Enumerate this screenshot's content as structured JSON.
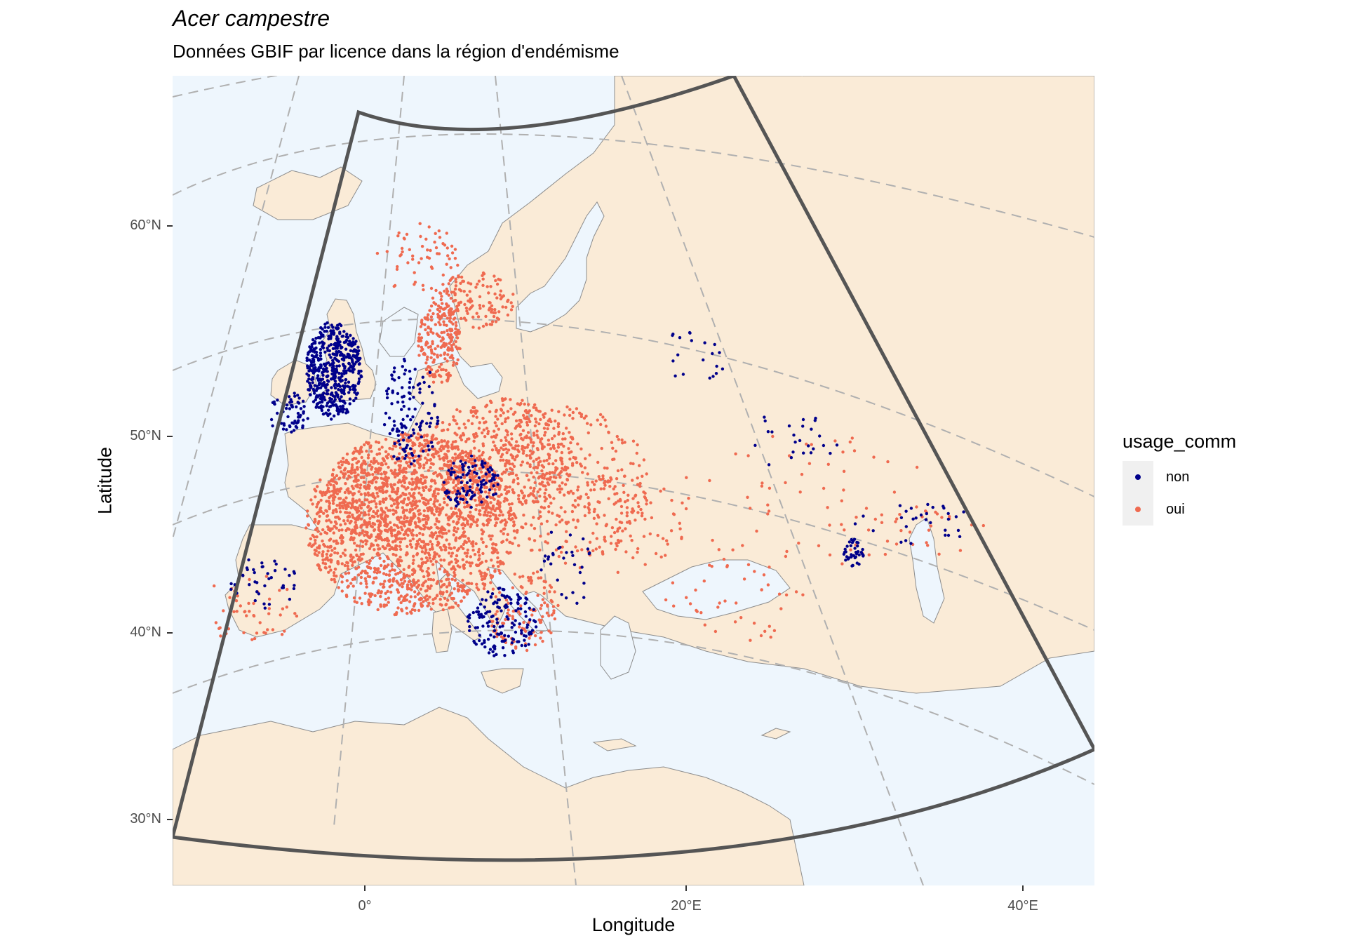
{
  "title": "Acer campestre",
  "subtitle": "Données GBIF par licence dans la région d'endémisme",
  "axes": {
    "x_label": "Longitude",
    "y_label": "Latitude",
    "x_ticks": [
      "0°",
      "20°E",
      "40°E"
    ],
    "y_ticks": [
      "60°N",
      "50°N",
      "40°N",
      "30°N"
    ]
  },
  "legend": {
    "title": "usage_comm",
    "items": [
      {
        "label": "non",
        "color": "#00008b"
      },
      {
        "label": "oui",
        "color": "#ef6a50"
      }
    ]
  },
  "colors": {
    "land": "#faebd7",
    "sea": "#eef6fd",
    "border": "#8c8c8c",
    "graticule": "#b0b0b0",
    "region_outline": "#555555"
  }
}
